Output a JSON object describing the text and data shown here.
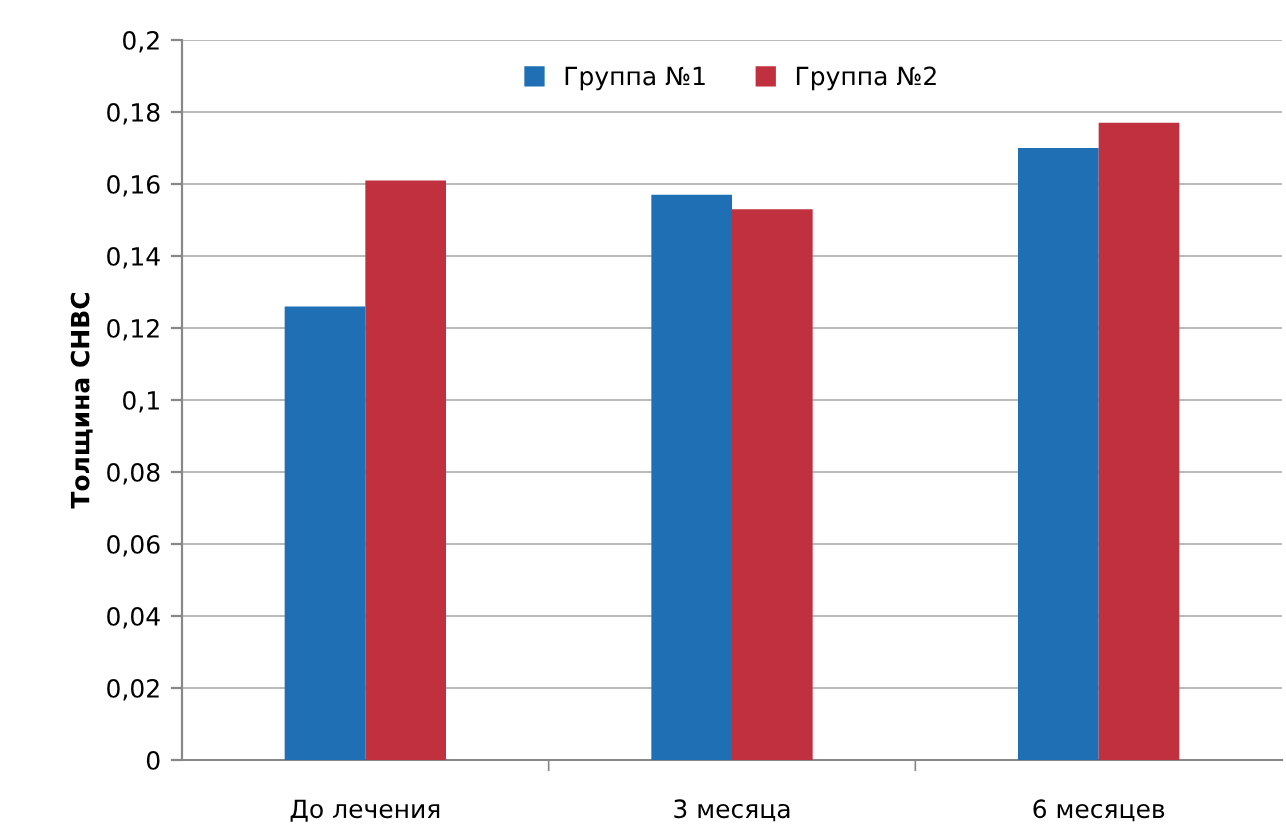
{
  "chart_data": {
    "type": "bar",
    "ylabel": "Толщина СНВС",
    "categories": [
      "До лечения",
      "3 месяца",
      "6 месяцев"
    ],
    "series": [
      {
        "name": "Группа №1",
        "color": "#1f6fb4",
        "values": [
          0.126,
          0.157,
          0.17
        ]
      },
      {
        "name": "Группа №2",
        "color": "#c0303f",
        "values": [
          0.161,
          0.153,
          0.177
        ]
      }
    ],
    "ylim": [
      0,
      0.2
    ],
    "yticks": [
      0,
      {
        "value": 0.02,
        "label": "0,02"
      },
      {
        "value": 0.04,
        "label": "0,04"
      },
      {
        "value": 0.06,
        "label": "0,06"
      },
      {
        "value": 0.08,
        "label": "0,08"
      },
      {
        "value": 0.1,
        "label": "0,1"
      },
      {
        "value": 0.12,
        "label": "0,12"
      },
      {
        "value": 0.14,
        "label": "0,14"
      },
      {
        "value": 0.16,
        "label": "0,16"
      },
      {
        "value": 0.18,
        "label": "0,18"
      },
      {
        "value": 0.2,
        "label": "0,2"
      }
    ],
    "grid": "y",
    "legend": "top"
  }
}
